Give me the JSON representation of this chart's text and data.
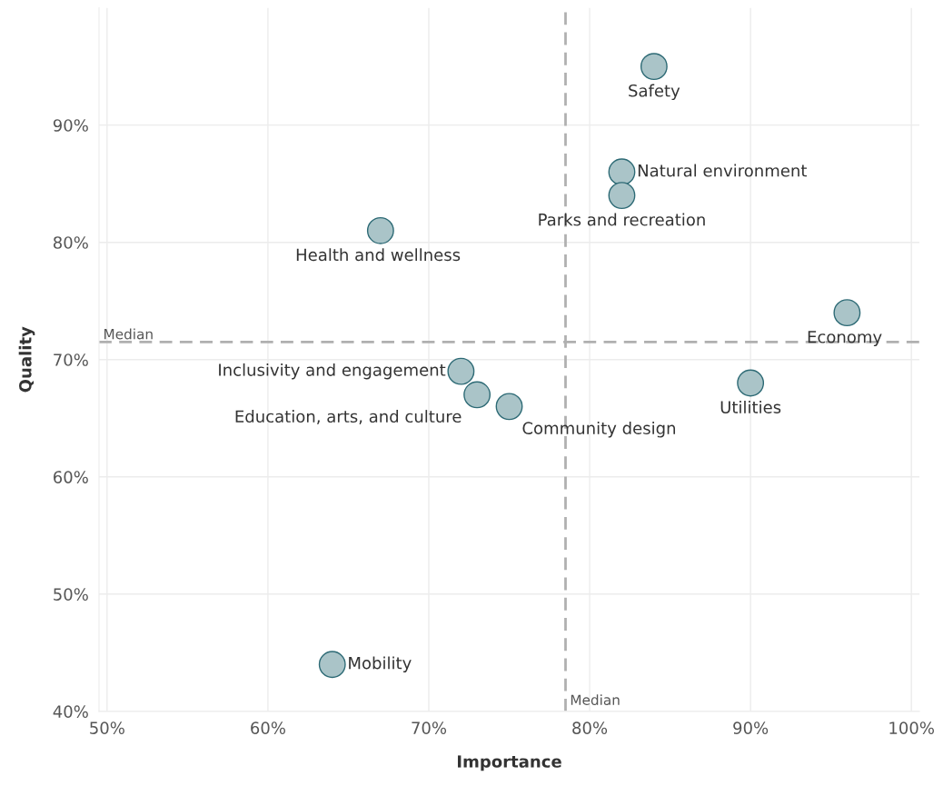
{
  "chart_data": {
    "type": "scatter",
    "xlabel": "Importance",
    "ylabel": "Quality",
    "annotations": [
      {
        "text": "Safety",
        "x": 84,
        "y": 95
      },
      {
        "text": "Natural environment",
        "x": 82,
        "y": 86
      },
      {
        "text": "Parks and recreation",
        "x": 82,
        "y": 84
      },
      {
        "text": "Health and wellness",
        "x": 67,
        "y": 81
      },
      {
        "text": "Economy",
        "x": 96,
        "y": 74
      },
      {
        "text": "Utilities",
        "x": 90,
        "y": 68
      },
      {
        "text": "Inclusivity and engagement",
        "x": 72,
        "y": 69
      },
      {
        "text": "Education, arts, and culture",
        "x": 73,
        "y": 67
      },
      {
        "text": "Community design",
        "x": 75,
        "y": 66
      },
      {
        "text": "Mobility",
        "x": 64,
        "y": 44
      }
    ],
    "series": [
      {
        "color": "#aac4c8",
        "x": [
          84,
          82,
          82,
          67,
          96,
          90,
          72,
          73,
          75,
          64
        ],
        "values": [
          95,
          86,
          84,
          81,
          74,
          68,
          69,
          67,
          66,
          44
        ]
      }
    ],
    "xlim": [
      49.5,
      100.5
    ],
    "ylim": [
      40,
      100
    ],
    "xticks": [
      {
        "value": 50,
        "label": "50%"
      },
      {
        "value": 60,
        "label": "60%"
      },
      {
        "value": 70,
        "label": "70%"
      },
      {
        "value": 80,
        "label": "80%"
      },
      {
        "value": 90,
        "label": "90%"
      },
      {
        "value": 100,
        "label": "100%"
      }
    ],
    "yticks": [
      {
        "value": 40,
        "label": "40%"
      },
      {
        "value": 50,
        "label": "50%"
      },
      {
        "value": 60,
        "label": "60%"
      },
      {
        "value": 70,
        "label": "70%"
      },
      {
        "value": 80,
        "label": "80%"
      },
      {
        "value": 90,
        "label": "90%"
      }
    ],
    "ref_lines": [
      {
        "axis": "x",
        "value": 78.5,
        "label": "Median",
        "color": "#b0b0b0",
        "line_style": "dashed"
      },
      {
        "axis": "y",
        "value": 71.5,
        "label": "Median",
        "color": "#b0b0b0",
        "line_style": "dashed"
      }
    ],
    "grid": true,
    "marker": "circle"
  }
}
